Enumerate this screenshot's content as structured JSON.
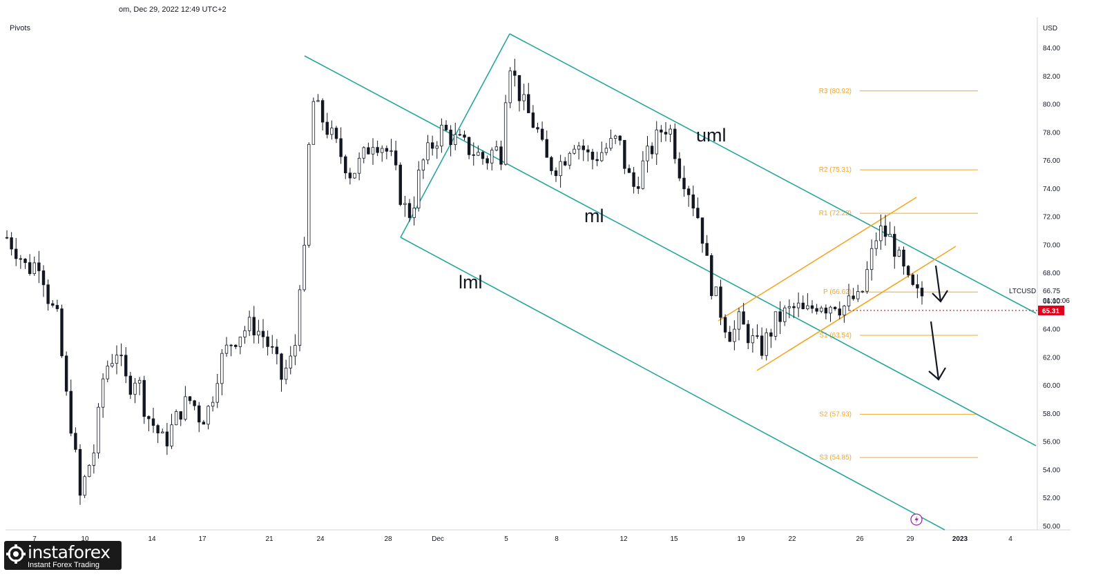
{
  "header": {
    "datetime": "om, Dec 29, 2022 12:49 UTC+2",
    "indicator_label": "Pivots"
  },
  "brand": {
    "name": "instaforex",
    "tagline": "Instant Forex Trading"
  },
  "colors": {
    "up": "#26a69a",
    "down": "#131722",
    "candle": "#131722",
    "channel": "#26a69a",
    "pivot": "#f5a623",
    "price_tag": "#e0001b",
    "arrow": "#131722",
    "brand_bg": "#1a1a1a"
  },
  "chart_data": {
    "type": "candlestick",
    "symbol": "LTCUSD",
    "currency": "USD",
    "last_price": "66.75",
    "countdown": "01:10:06",
    "marked_price": "65.31",
    "marked_value": 65.31,
    "ylim": [
      50,
      85
    ],
    "y_ticks": [
      50,
      52,
      54,
      56,
      58,
      60,
      62,
      64,
      66,
      68,
      70,
      72,
      74,
      76,
      78,
      80,
      82,
      84
    ],
    "x_ticks": [
      "7",
      "10",
      "14",
      "17",
      "21",
      "24",
      "28",
      "Dec",
      "5",
      "8",
      "12",
      "15",
      "19",
      "22",
      "26",
      "29",
      "2023",
      "4"
    ],
    "pivot_levels": [
      {
        "label": "R3 (80.92)",
        "value": 80.92
      },
      {
        "label": "R2 (75.31)",
        "value": 75.31
      },
      {
        "label": "R1 (72.22)",
        "value": 72.22
      },
      {
        "label": "P (66.62)",
        "value": 66.62
      },
      {
        "label": "S1 (63.54)",
        "value": 63.54
      },
      {
        "label": "S2 (57.93)",
        "value": 57.93
      },
      {
        "label": "S3 (54.85)",
        "value": 54.85
      }
    ],
    "annotations": [
      "uml",
      "ml",
      "lml"
    ],
    "close_path": [
      [
        0,
        70.5
      ],
      [
        0.6,
        69.5
      ],
      [
        1.1,
        68.2
      ],
      [
        1.8,
        68.9
      ],
      [
        2.3,
        66.0
      ],
      [
        2.8,
        64.5
      ],
      [
        3.2,
        59.5
      ],
      [
        3.6,
        56.5
      ],
      [
        4.0,
        52.0
      ],
      [
        4.4,
        54.0
      ],
      [
        4.8,
        55.5
      ],
      [
        5.3,
        61.0
      ],
      [
        6.0,
        62.5
      ],
      [
        6.6,
        59.8
      ],
      [
        7.1,
        60.8
      ],
      [
        7.6,
        58.0
      ],
      [
        8.1,
        57.0
      ],
      [
        8.6,
        55.8
      ],
      [
        9.1,
        57.2
      ],
      [
        9.6,
        58.5
      ],
      [
        10.1,
        59.0
      ],
      [
        10.6,
        57.5
      ],
      [
        11.1,
        58.5
      ],
      [
        11.6,
        61.5
      ],
      [
        12.2,
        63.0
      ],
      [
        12.8,
        63.8
      ],
      [
        13.4,
        64.3
      ],
      [
        14.0,
        63.5
      ],
      [
        14.6,
        62.0
      ],
      [
        15.0,
        60.5
      ],
      [
        15.4,
        61.5
      ],
      [
        15.7,
        62.0
      ],
      [
        16.0,
        67.5
      ],
      [
        16.3,
        69.5
      ],
      [
        16.6,
        80.5
      ],
      [
        17.0,
        79.5
      ],
      [
        17.6,
        78.0
      ],
      [
        18.2,
        76.5
      ],
      [
        18.8,
        75.0
      ],
      [
        19.4,
        76.0
      ],
      [
        20.0,
        77.5
      ],
      [
        20.6,
        77.0
      ],
      [
        21.1,
        75.8
      ],
      [
        21.5,
        73.5
      ],
      [
        21.9,
        72.0
      ],
      [
        22.2,
        72.8
      ],
      [
        22.6,
        75.5
      ],
      [
        23.2,
        77.0
      ],
      [
        23.8,
        78.2
      ],
      [
        24.4,
        77.5
      ],
      [
        25.0,
        77.0
      ],
      [
        25.6,
        76.5
      ],
      [
        26.2,
        76.0
      ],
      [
        26.6,
        76.8
      ],
      [
        27.0,
        76.5
      ],
      [
        27.4,
        83.5
      ],
      [
        27.8,
        81.5
      ],
      [
        28.2,
        80.0
      ],
      [
        28.6,
        79.0
      ],
      [
        29.0,
        78.0
      ],
      [
        29.4,
        76.0
      ],
      [
        29.9,
        75.5
      ],
      [
        30.4,
        76.0
      ],
      [
        30.9,
        77.5
      ],
      [
        31.4,
        77.0
      ],
      [
        31.9,
        76.0
      ],
      [
        32.4,
        76.5
      ],
      [
        32.9,
        77.0
      ],
      [
        33.4,
        77.5
      ],
      [
        33.9,
        75.0
      ],
      [
        34.3,
        74.0
      ],
      [
        34.7,
        75.5
      ],
      [
        35.1,
        76.5
      ],
      [
        35.5,
        77.5
      ],
      [
        35.9,
        78.5
      ],
      [
        36.3,
        78.0
      ],
      [
        36.7,
        75.5
      ],
      [
        37.1,
        74.5
      ],
      [
        37.5,
        73.0
      ],
      [
        37.9,
        71.5
      ],
      [
        38.2,
        69.0
      ],
      [
        38.4,
        67.5
      ],
      [
        38.8,
        66.0
      ],
      [
        39.2,
        64.5
      ],
      [
        39.6,
        63.5
      ],
      [
        40.0,
        64.5
      ],
      [
        40.4,
        63.8
      ],
      [
        40.8,
        63.0
      ],
      [
        41.2,
        62.5
      ],
      [
        41.6,
        63.5
      ],
      [
        42.0,
        64.5
      ],
      [
        42.4,
        65.0
      ],
      [
        42.8,
        65.3
      ],
      [
        43.2,
        65.5
      ],
      [
        43.6,
        65.0
      ],
      [
        44.0,
        65.5
      ],
      [
        44.4,
        66.0
      ],
      [
        44.8,
        65.6
      ],
      [
        45.2,
        66.0
      ],
      [
        45.6,
        65.5
      ],
      [
        46.0,
        65.8
      ],
      [
        46.3,
        66.2
      ],
      [
        46.6,
        65.9
      ],
      [
        46.9,
        67.5
      ],
      [
        47.2,
        69.0
      ],
      [
        47.5,
        70.5
      ],
      [
        47.8,
        71.0
      ],
      [
        48.1,
        70.6
      ],
      [
        48.4,
        70.2
      ],
      [
        48.7,
        69.0
      ],
      [
        49.0,
        68.0
      ],
      [
        49.3,
        67.0
      ],
      [
        49.6,
        66.5
      ],
      [
        49.9,
        66.2
      ],
      [
        50.2,
        66.75
      ]
    ]
  }
}
